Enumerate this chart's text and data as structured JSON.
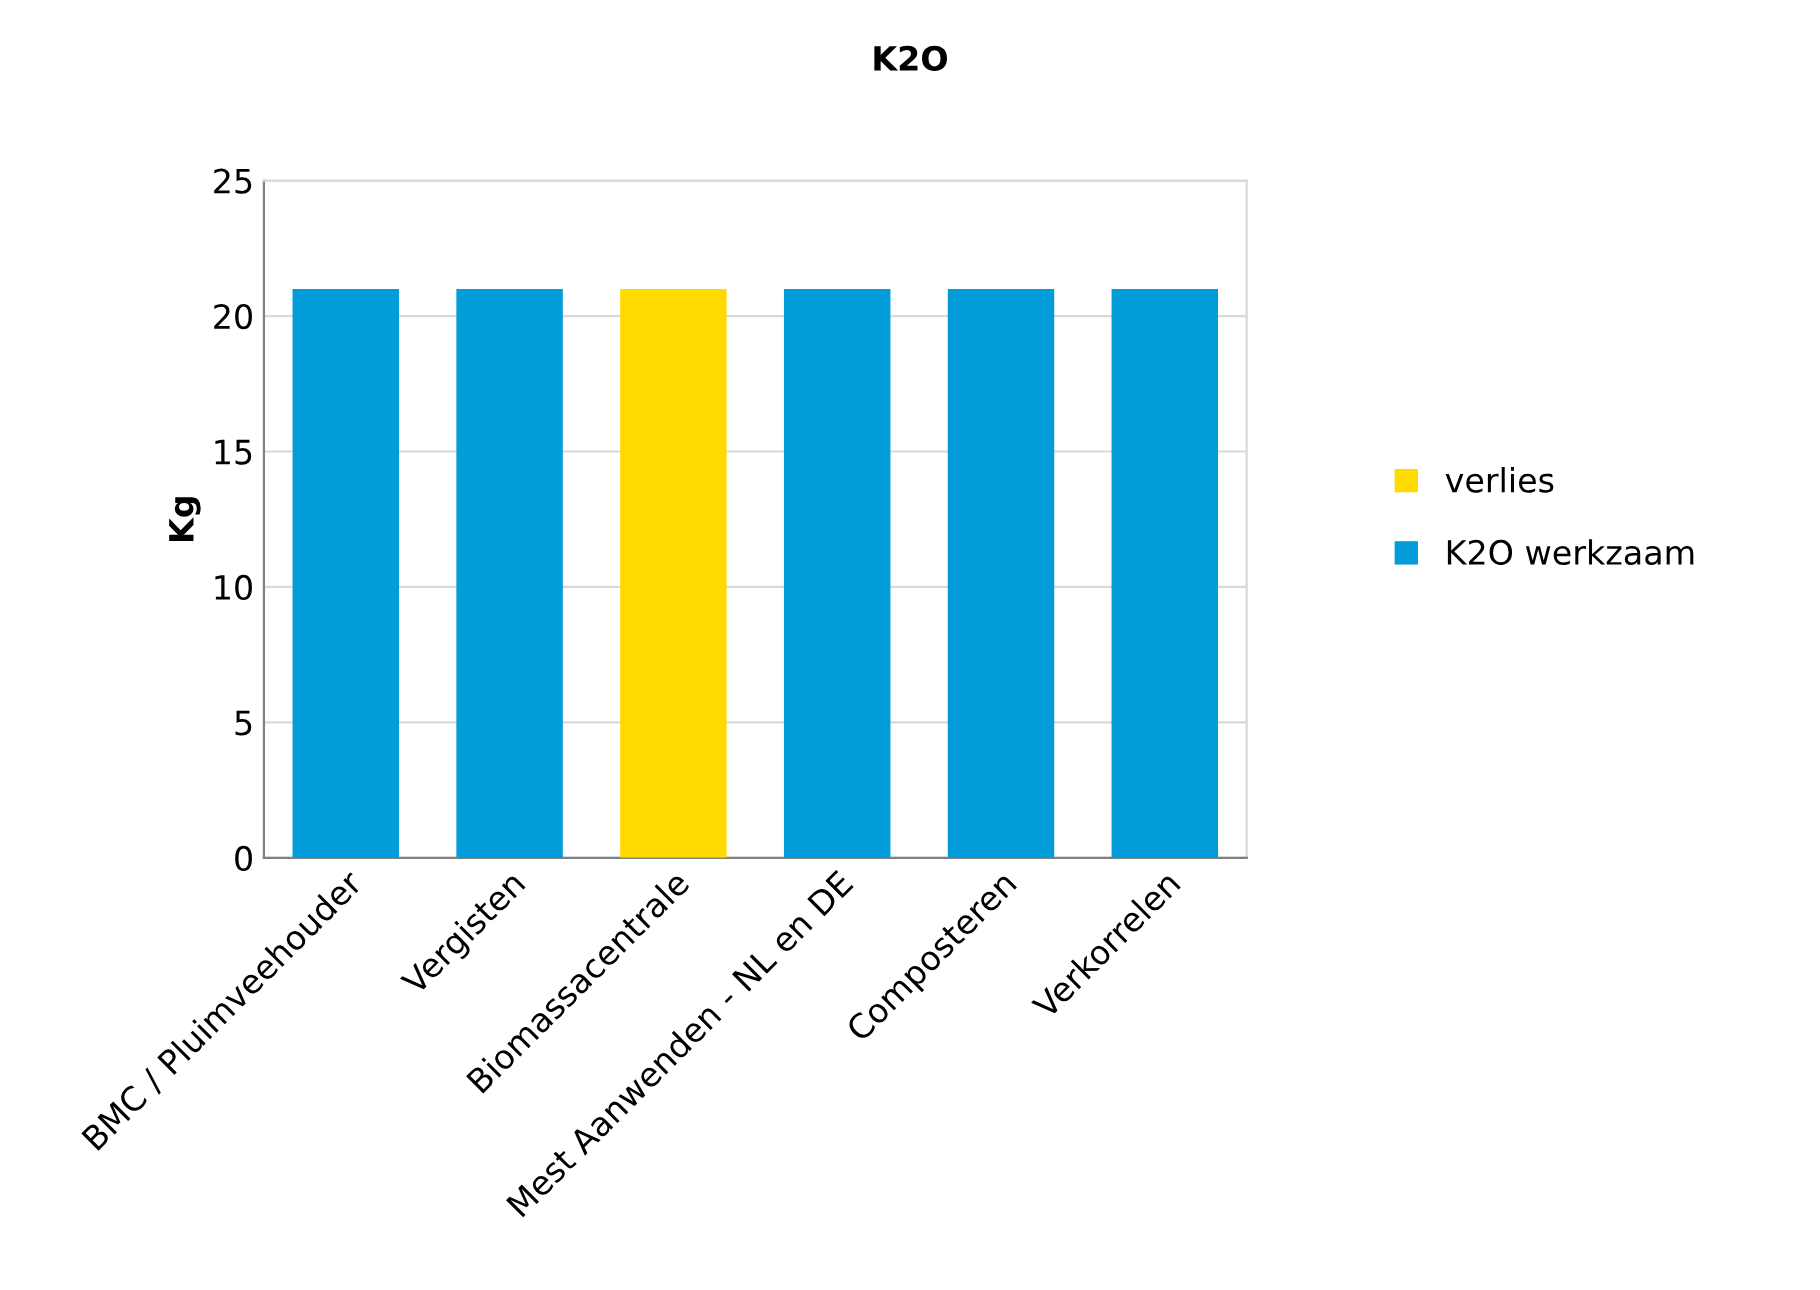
{
  "chart_data": {
    "type": "bar",
    "stacked": true,
    "title": "K2O",
    "ylabel": "Kg",
    "categories": [
      "BMC / Pluimveehouder",
      "Vergisten",
      "Biomassacentrale",
      "Mest Aanwenden - NL en DE",
      "Composteren",
      "Verkorrelen"
    ],
    "series": [
      {
        "name": "K2O werkzaam",
        "color": "#029cd8",
        "values": [
          21,
          21,
          null,
          21,
          21,
          21
        ]
      },
      {
        "name": "verlies",
        "color": "#ffd900",
        "values": [
          null,
          null,
          21,
          null,
          null,
          null
        ]
      }
    ],
    "ylim": [
      0,
      25
    ],
    "yticks": [
      0,
      5,
      10,
      15,
      20,
      25
    ],
    "grid": "y",
    "legend": "right"
  }
}
